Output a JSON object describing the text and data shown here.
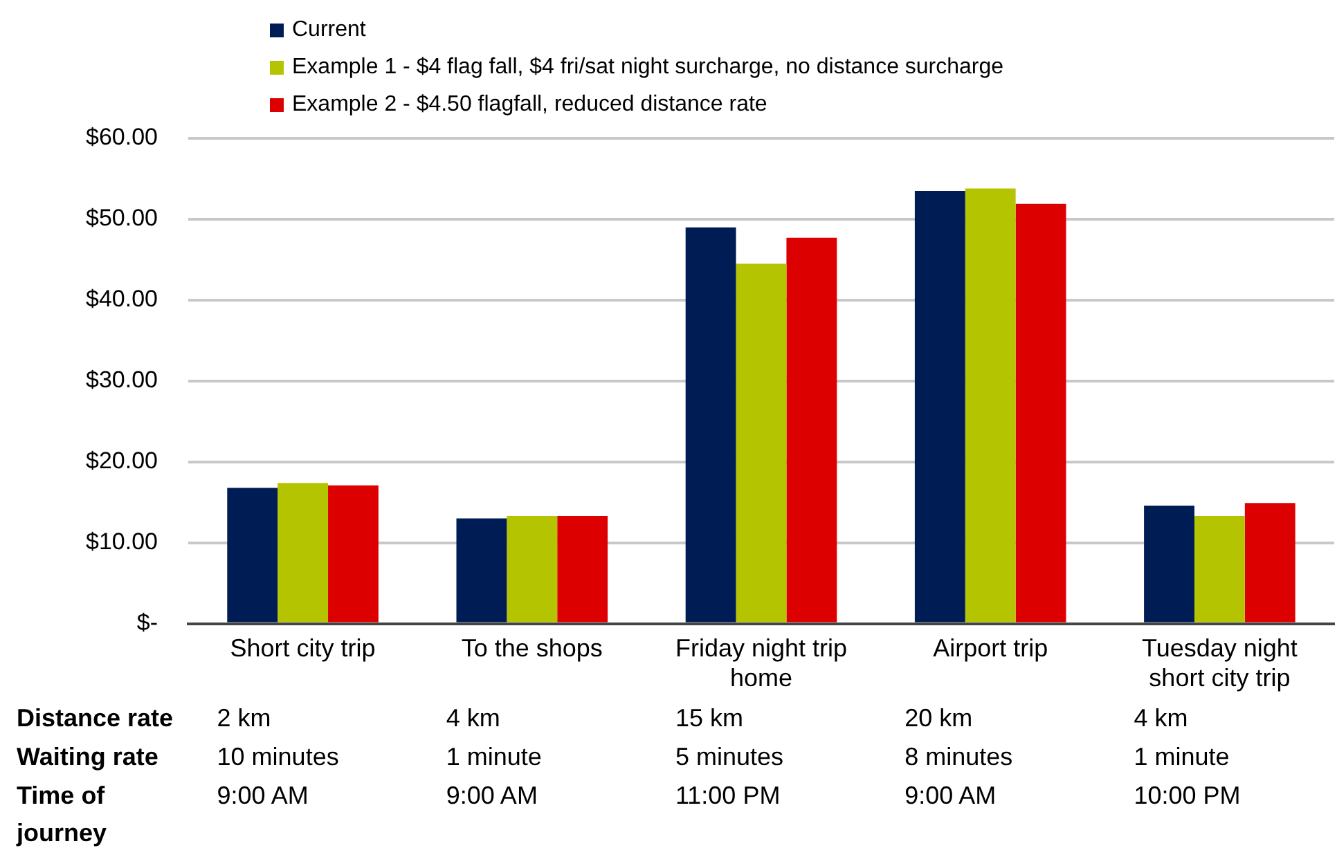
{
  "chart_data": {
    "type": "bar",
    "categories": [
      "Short city trip",
      "To the shops",
      "Friday night trip home",
      "Airport trip",
      "Tuesday night short city trip"
    ],
    "series": [
      {
        "name": "Current",
        "color": "#001c54",
        "values": [
          16.8,
          13.0,
          49.0,
          53.5,
          14.6
        ]
      },
      {
        "name": "Example 1 - $4 flag fall, $4 fri/sat night surcharge, no distance surcharge",
        "color": "#b5c400",
        "values": [
          17.4,
          13.3,
          44.5,
          53.8,
          13.3
        ]
      },
      {
        "name": "Example 2 - $4.50 flagfall, reduced distance rate",
        "color": "#dd0000",
        "values": [
          17.1,
          13.3,
          47.7,
          51.9,
          14.9
        ]
      }
    ],
    "ylim": [
      0,
      60
    ],
    "yticks": [
      {
        "value": 0,
        "label": "$-"
      },
      {
        "value": 10,
        "label": "$10.00"
      },
      {
        "value": 20,
        "label": "$20.00"
      },
      {
        "value": 30,
        "label": "$30.00"
      },
      {
        "value": 40,
        "label": "$40.00"
      },
      {
        "value": 50,
        "label": "$50.00"
      },
      {
        "value": 60,
        "label": "$60.00"
      }
    ],
    "grid": "y",
    "legend": "top",
    "annotations": [
      "Distance rate",
      "2 km",
      "4 km",
      "15 km",
      "20 km",
      "4 km",
      "Waiting rate",
      "10 minutes",
      "1 minute",
      "5 minutes",
      "8 minutes",
      "1 minute",
      "Time of journey",
      "9:00 AM",
      "9:00 AM",
      "11:00 PM",
      "9:00 AM",
      "10:00 PM"
    ]
  }
}
